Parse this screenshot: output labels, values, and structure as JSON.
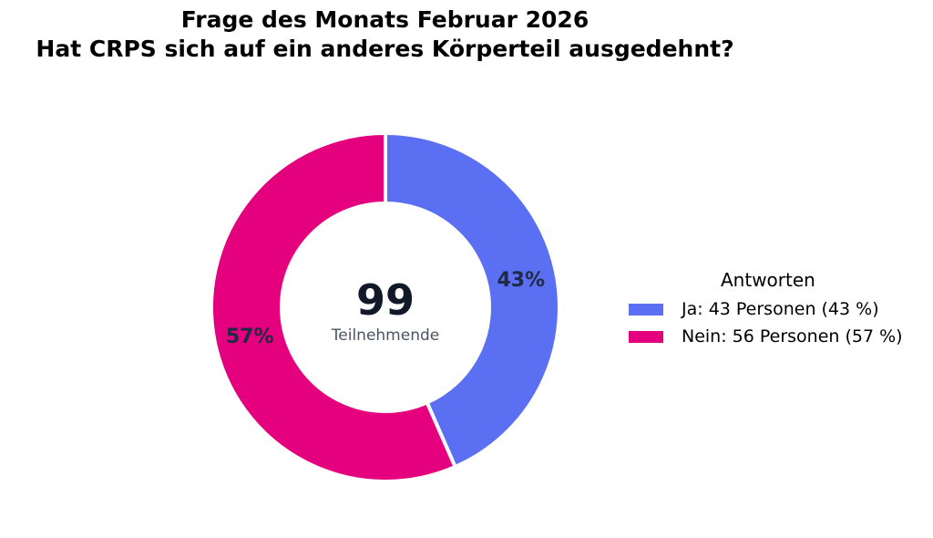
{
  "chart_data": {
    "type": "pie",
    "title": "Frage des Monats Februar 2026",
    "subtitle": "Hat CRPS sich auf ein anderes Körperteil ausgedehnt?",
    "donut": true,
    "center_value": "99",
    "center_label": "Teilnehmende",
    "legend_title": "Antworten",
    "legend_position": "right",
    "slices": [
      {
        "label": "Ja",
        "value": 43,
        "percent_label": "43%",
        "legend_label": "Ja: 43 Personen (43 %)",
        "color": "#5b6ff2"
      },
      {
        "label": "Nein",
        "value": 56,
        "percent_label": "57%",
        "legend_label": "Nein: 56 Personen (57 %)",
        "color": "#e5007e"
      }
    ]
  }
}
